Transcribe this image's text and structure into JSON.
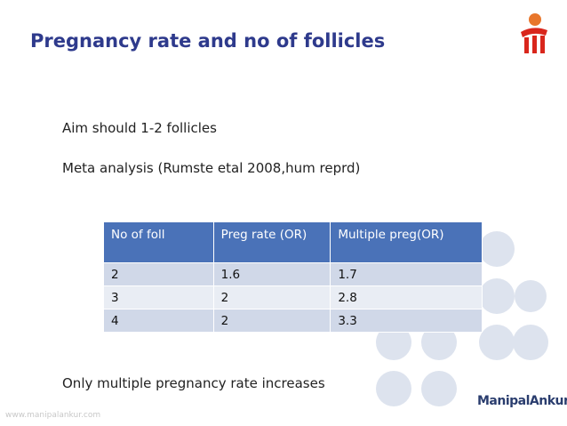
{
  "title": "Pregnancy rate and no of follicles",
  "bullets": [
    "Aim should 1-2 follicles",
    "Meta analysis (Rumste etal 2008,hum reprd)"
  ],
  "table": {
    "header": [
      "No of foll",
      "Preg rate (OR)",
      "Multiple preg(OR)"
    ],
    "rows": [
      [
        2,
        1.6,
        1.7
      ],
      [
        3,
        2,
        2.8
      ],
      [
        4,
        2,
        3.3
      ]
    ]
  },
  "conclusion": "Only multiple pregnancy rate increases",
  "footer": {
    "website": "www.manipalankur.com",
    "brand": "ManipalAnkur"
  }
}
